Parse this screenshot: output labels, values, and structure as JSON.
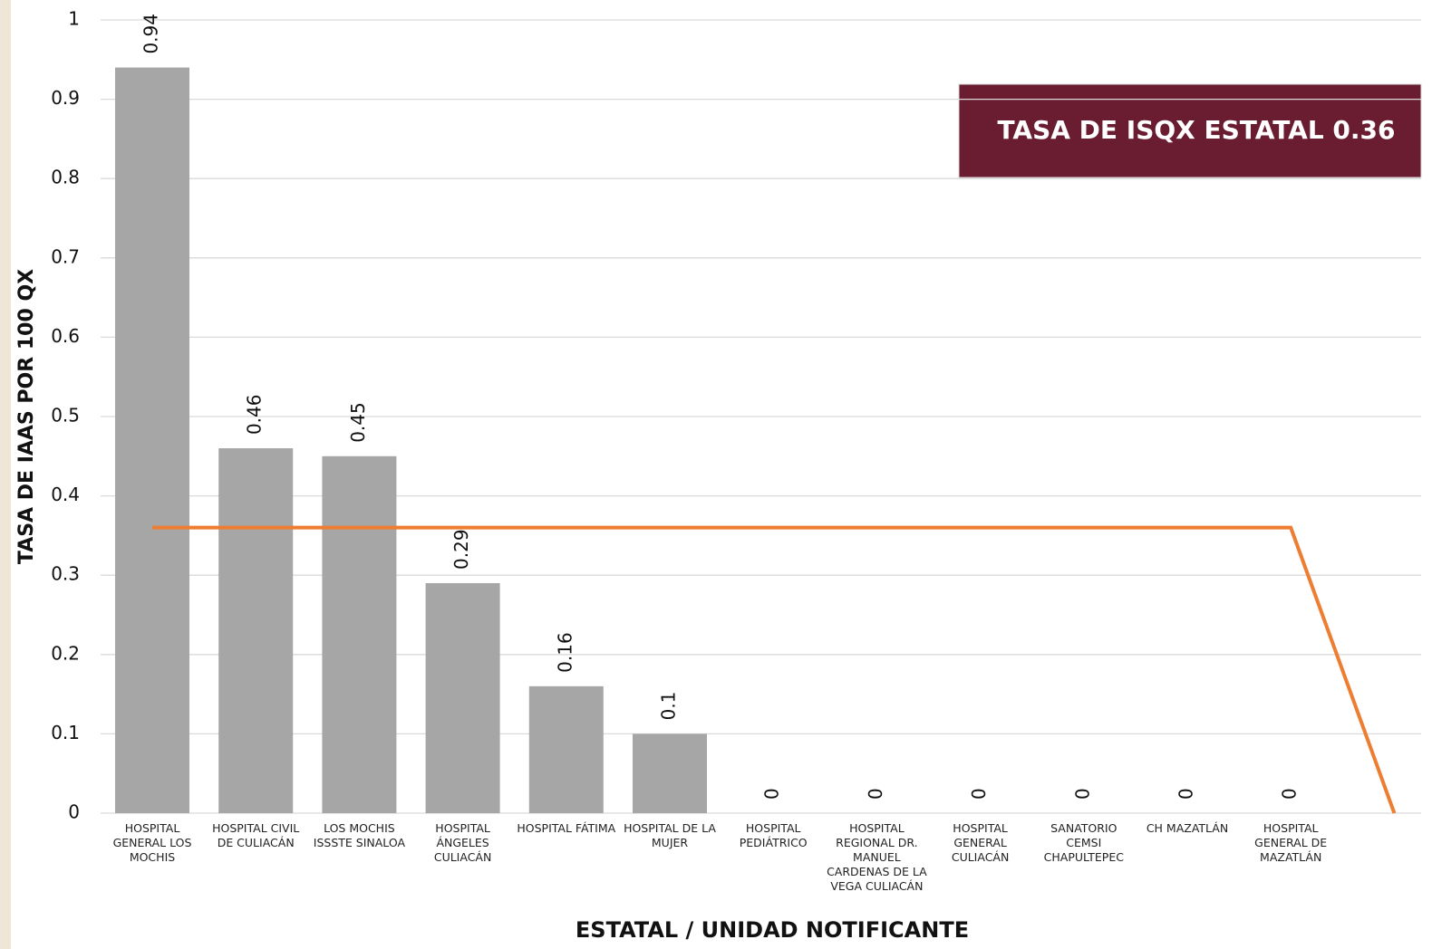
{
  "chart_data": {
    "type": "bar",
    "y_label": "TASA DE IAAS POR 100 QX",
    "x_label": "ESTATAL / UNIDAD NOTIFICANTE",
    "annotation": "TASA DE ISQX ESTATAL 0.36",
    "categories": [
      "HOSPITAL GENERAL LOS MOCHIS",
      "HOSPITAL CIVIL DE CULIACÁN",
      "LOS MOCHIS ISSSTE SINALOA",
      "HOSPITAL ÁNGELES CULIACÁN",
      "HOSPITAL FÁTIMA",
      "HOSPITAL DE LA MUJER",
      "HOSPITAL PEDIÁTRICO",
      "HOSPITAL REGIONAL DR. MANUEL CARDENAS DE LA VEGA CULIACÁN",
      "HOSPITAL GENERAL CULIACÁN",
      "SANATORIO CEMSI CHAPULTEPEC",
      "CH MAZATLÁN",
      "HOSPITAL GENERAL DE MAZATLÁN",
      null
    ],
    "series": [
      {
        "type": "bar",
        "color": "#a6a6a6",
        "values": [
          0.94,
          0.46,
          0.45,
          0.29,
          0.16,
          0.1,
          0,
          0,
          0,
          0,
          0,
          0,
          null
        ]
      },
      {
        "type": "line",
        "color": "#ed7d31",
        "values": [
          0.36,
          0.36,
          0.36,
          0.36,
          0.36,
          0.36,
          0.36,
          0.36,
          0.36,
          0.36,
          0.36,
          0.36,
          0
        ]
      }
    ],
    "ylim": [
      0,
      1
    ],
    "yticks": [
      0,
      0.1,
      0.2,
      0.3,
      0.4,
      0.5,
      0.6,
      0.7,
      0.8,
      0.9,
      1
    ],
    "grid": true
  }
}
